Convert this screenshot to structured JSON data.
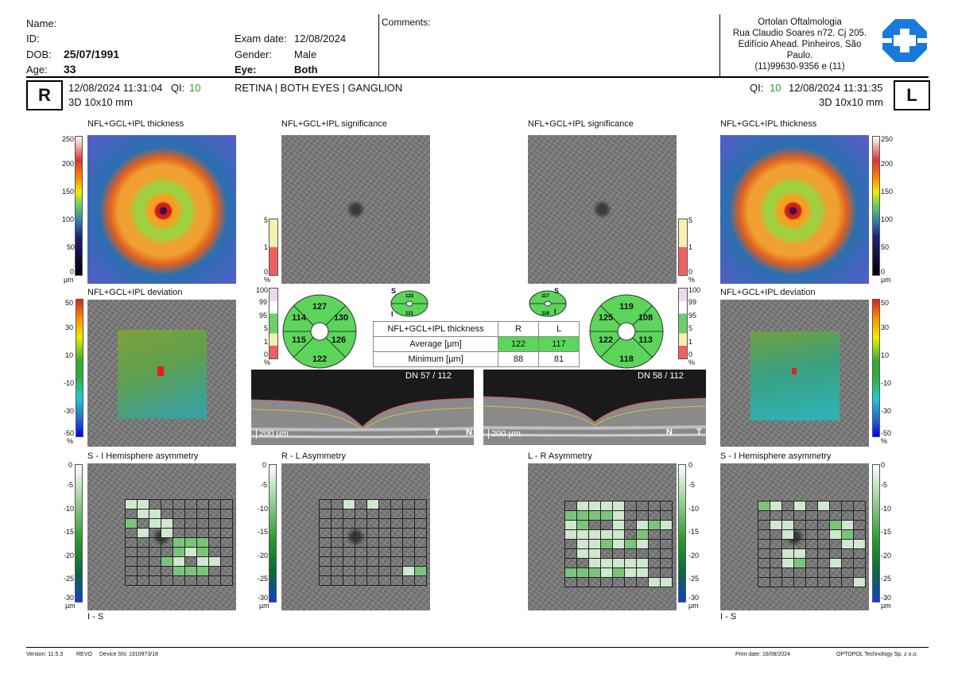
{
  "header": {
    "name_label": "Name:",
    "id_label": "ID:",
    "dob_label": "DOB:",
    "dob_value": "25/07/1991",
    "age_label": "Age:",
    "age_value": "33",
    "exam_date_label": "Exam date:",
    "exam_date_value": "12/08/2024",
    "gender_label": "Gender:",
    "gender_value": "Male",
    "eye_label": "Eye:",
    "eye_value": "Both",
    "comments_label": "Comments:",
    "clinic": [
      "Ortolan Oftalmologia",
      "Rua Claudio Soares n72. Cj 205.",
      "Edifício Ahead. Pinheiros, São",
      "Paulo.",
      "(11)99630-9356 e (11)"
    ]
  },
  "scan_info": {
    "right_eye": "R",
    "left_eye": "L",
    "right_datetime": "12/08/2024 11:31:04",
    "left_datetime": "12/08/2024 11:31:35",
    "qi_label": "QI:",
    "right_qi": "10",
    "left_qi": "10",
    "right_scan": "3D  10x10 mm",
    "left_scan": "3D  10x10 mm",
    "protocol": "RETINA | BOTH EYES | GANGLION"
  },
  "panels": {
    "thickness": "NFL+GCL+IPL thickness",
    "significance": "NFL+GCL+IPL significance",
    "deviation": "NFL+GCL+IPL deviation",
    "si_asym": "S - I Hemisphere asymmetry",
    "rl_asym": "R - L Asymmetry",
    "lr_asym": "L - R Asymmetry",
    "is_label": "I - S"
  },
  "scales": {
    "thickness": [
      "250",
      "200",
      "150",
      "100",
      "50",
      "0",
      "µm"
    ],
    "significance": [
      "5",
      "1",
      "0",
      "%"
    ],
    "sig_ext": [
      "100",
      "99",
      "95",
      "5",
      "1",
      "0",
      "%"
    ],
    "deviation": [
      "50",
      "30",
      "10",
      "-10",
      "-30",
      "-50",
      "%"
    ],
    "asym": [
      "0",
      "-5",
      "-10",
      "-15",
      "-20",
      "-25",
      "-30",
      "µm"
    ]
  },
  "sectors": {
    "right": {
      "sup": "127",
      "nas_up": "130",
      "nas_low": "126",
      "inf": "122",
      "temp_low": "115",
      "temp_up": "114"
    },
    "left": {
      "sup": "119",
      "nas_up": "108",
      "nas_low": "113",
      "inf": "118",
      "temp_low": "122",
      "temp_up": "125"
    },
    "mini_right": {
      "sup": "123",
      "inf": "121"
    },
    "mini_left": {
      "sup": "117",
      "inf": "118"
    },
    "s": "S",
    "i": "I"
  },
  "table": {
    "title": "NFL+GCL+IPL thickness",
    "col_r": "R",
    "col_l": "L",
    "avg_label": "Average [µm]",
    "avg_r": "122",
    "avg_l": "117",
    "min_label": "Minimum [µm]",
    "min_r": "88",
    "min_l": "81"
  },
  "bscan": {
    "right_counter": "DN  57 / 112",
    "left_counter": "DN  58 / 112",
    "scale_bar": "200 µm",
    "t": "T",
    "n": "N"
  },
  "footer": {
    "version": "Version: 11.5.3",
    "revo": "REVO",
    "device": "Device SN: 1910973/18",
    "print_date": "Print date: 16/08/2024",
    "company": "OPTOPOL Technology Sp. z o.o."
  },
  "colors": {
    "qi_green": "#2a9a2a",
    "sector_green": "#5bd65b",
    "table_green": "#5bd65b"
  }
}
